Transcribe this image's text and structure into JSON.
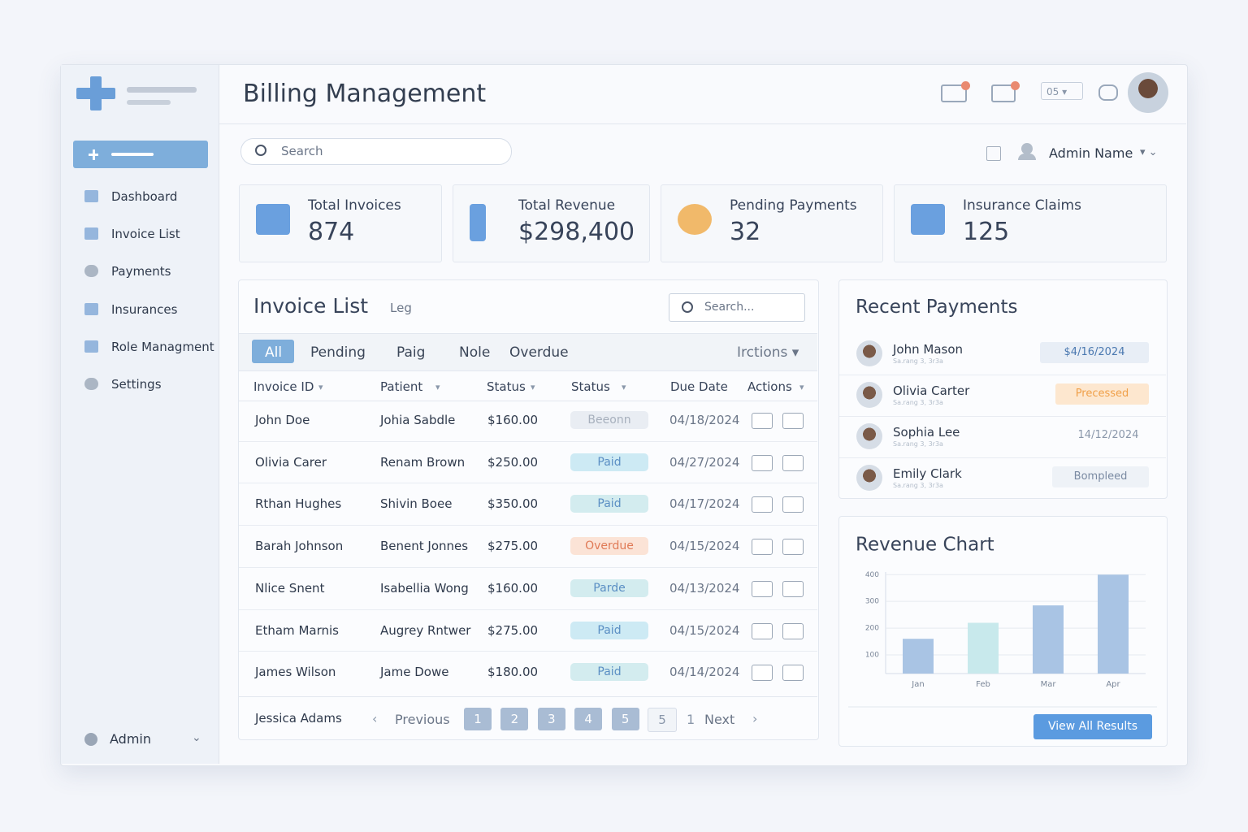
{
  "header": {
    "title": "Billing Management",
    "select": "05",
    "user": "Admin Name"
  },
  "search": "Search",
  "sidebar": {
    "items": [
      "Dashboard",
      "Invoice List",
      "Payments",
      "Insurances",
      "Role Managment",
      "Settings"
    ],
    "footer": "Admin"
  },
  "stats": [
    {
      "label": "Total Invoices",
      "value": "874"
    },
    {
      "label": "Total Revenue",
      "value": "$298,400"
    },
    {
      "label": "Pending Payments",
      "value": "32"
    },
    {
      "label": "Insurance Claims",
      "value": "125"
    }
  ],
  "invoice_list": {
    "title": "Invoice List",
    "subtitle": "Leg",
    "search": "Search...",
    "tabs": [
      "All",
      "Pending",
      "Paig",
      "Nole",
      "Overdue"
    ],
    "tab_action": "Irctions",
    "columns": [
      "Invoice ID",
      "Patient",
      "Status",
      "Status",
      "Due Date",
      "Actions"
    ],
    "rows": [
      {
        "invoice_id": "John Doe",
        "patient": "Johia Sabdle",
        "amount": "$160.00",
        "status": "Beeonn",
        "due": "04/18/2024",
        "color": "#e9edf3"
      },
      {
        "invoice_id": "Olivia Carer",
        "patient": "Renam Brown",
        "amount": "$250.00",
        "status": "Paid",
        "due": "04/27/2024",
        "color": "#cdeaf4"
      },
      {
        "invoice_id": "Rthan Hughes",
        "patient": "Shivin Boee",
        "amount": "$350.00",
        "status": "Paid",
        "due": "04/17/2024",
        "color": "#d3ecef"
      },
      {
        "invoice_id": "Barah Johnson",
        "patient": "Benent Jonnes",
        "amount": "$275.00",
        "status": "Overdue",
        "due": "04/15/2024",
        "color": "#fbe3d6"
      },
      {
        "invoice_id": "Nlice Snent",
        "patient": "Isabellia Wong",
        "amount": "$160.00",
        "status": "Parde",
        "due": "04/13/2024",
        "color": "#d3ecef"
      },
      {
        "invoice_id": "Etham Marnis",
        "patient": "Augrey Rntwer",
        "amount": "$275.00",
        "status": "Paid",
        "due": "04/15/2024",
        "color": "#cdeaf4"
      },
      {
        "invoice_id": "James Wilson",
        "patient": "Jame Dowe",
        "amount": "$180.00",
        "status": "Paid",
        "due": "04/14/2024",
        "color": "#d3ecef"
      }
    ],
    "footer_name": "Jessica Adams",
    "pagination": {
      "previous": "Previous",
      "pages": [
        "1",
        "2",
        "3",
        "4",
        "5",
        "5"
      ],
      "extra": "1",
      "next": "Next"
    }
  },
  "recent_payments": {
    "title": "Recent Payments",
    "items": [
      {
        "name": "John Mason",
        "sub": "Sa.rang 3, 3r3a",
        "badge": "$4/16/2024"
      },
      {
        "name": "Olivia Carter",
        "sub": "Sa.rang 3, 3r3a",
        "badge": "Precessed"
      },
      {
        "name": "Sophia Lee",
        "sub": "Sa.rang 3, 3r3a",
        "badge": "14/12/2024"
      },
      {
        "name": "Emily Clark",
        "sub": "Sa.rang 3, 3r3a",
        "badge": "Bompleed"
      }
    ]
  },
  "chart_data": {
    "type": "bar",
    "title": "Revenue Chart",
    "categories": [
      "Jan",
      "Feb",
      "Mar",
      "Apr"
    ],
    "values": [
      160,
      220,
      285,
      400
    ],
    "colors": [
      "#a9c4e4",
      "#c8e9ec",
      "#a9c4e4",
      "#a9c4e4"
    ],
    "ylim": [
      30,
      410
    ],
    "yticks": [
      100,
      200,
      300,
      400
    ],
    "grid": true
  },
  "view_all": "View All Results"
}
